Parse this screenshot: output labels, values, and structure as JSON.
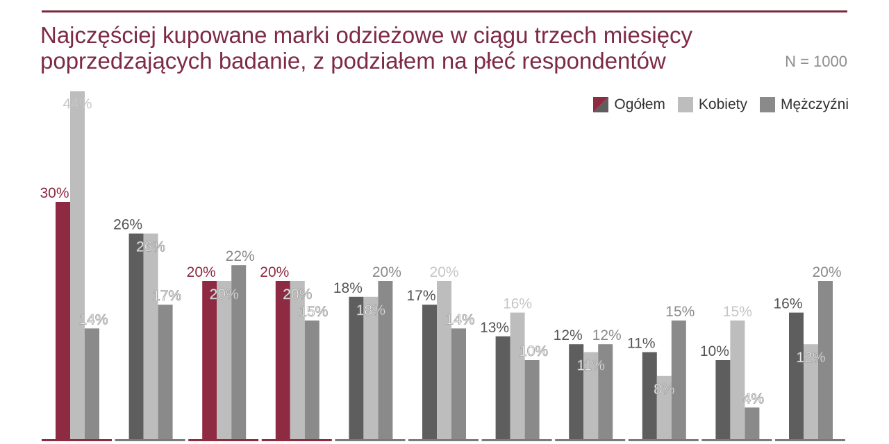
{
  "header": {
    "title_line1": "Najczęściej kupowane marki odzieżowe w ciągu trzech miesięcy",
    "title_line2": "poprzedzających badanie, z podziałem na płeć respondentów",
    "sample": "N = 1000"
  },
  "legend": {
    "ogolem": "Ogółem",
    "kobiety": "Kobiety",
    "mezczyzni": "Mężczyźni"
  },
  "colors": {
    "accent": "#8e2a42",
    "ogolem_other": "#5e5e5e",
    "kobiety": "#bdbdbd",
    "mezczyzni": "#8a8a8a",
    "title": "#7d2a45"
  },
  "chart_data": {
    "type": "bar",
    "categories": [
      "",
      "",
      "",
      "",
      "",
      "",
      "",
      "",
      "",
      "",
      ""
    ],
    "series": [
      {
        "name": "Ogółem",
        "values": [
          30,
          26,
          20,
          20,
          18,
          17,
          13,
          12,
          11,
          10,
          16
        ]
      },
      {
        "name": "Kobiety",
        "values": [
          44,
          26,
          20,
          20,
          18,
          20,
          16,
          11,
          8,
          15,
          12
        ]
      },
      {
        "name": "Mężczyźni",
        "values": [
          14,
          17,
          22,
          15,
          20,
          14,
          10,
          12,
          15,
          4,
          20
        ]
      }
    ],
    "value_suffix": "%",
    "highlighted_groups": [
      0,
      2,
      3
    ],
    "ylim": [
      0,
      46
    ],
    "grid": false,
    "legend_position": "top-right"
  }
}
